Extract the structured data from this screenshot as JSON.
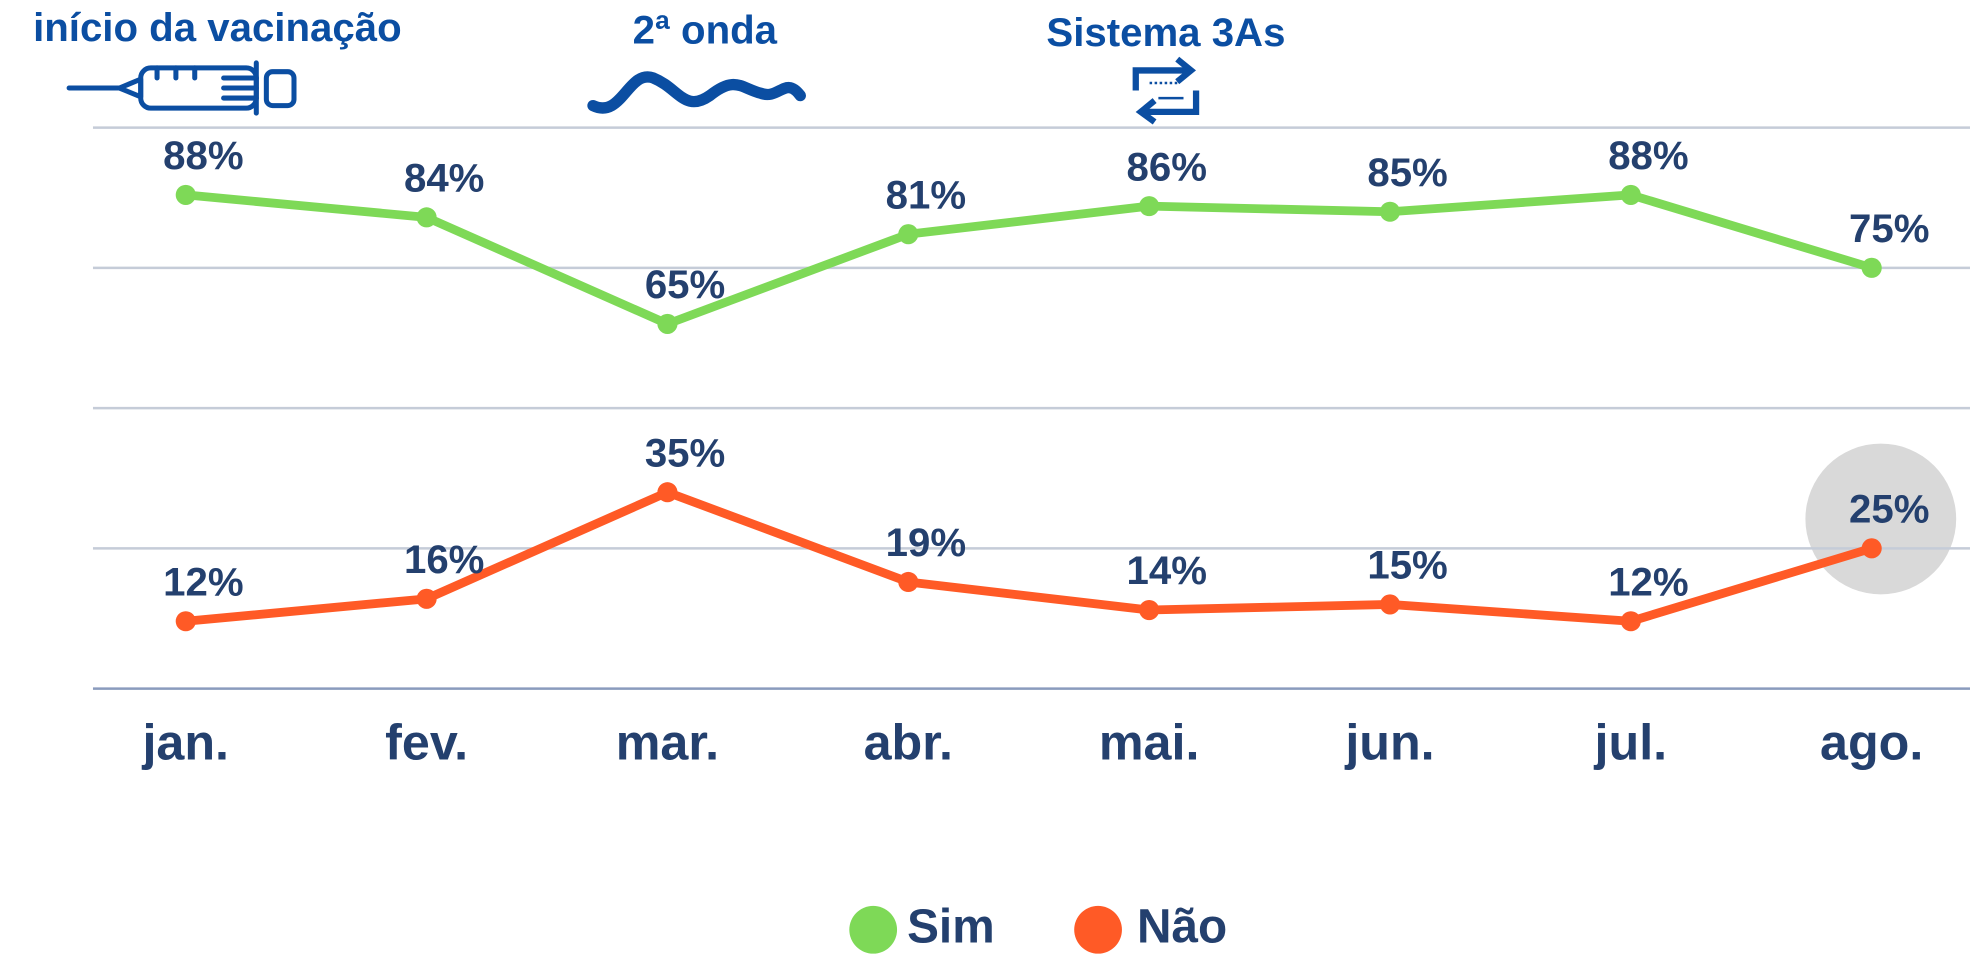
{
  "chart_data": {
    "type": "line",
    "annotations": [
      "início da vacinação",
      "2ª onda",
      "Sistema 3As"
    ],
    "categories": [
      "jan.",
      "fev.",
      "mar.",
      "abr.",
      "mai.",
      "jun.",
      "jul.",
      "ago."
    ],
    "series": [
      {
        "name": "Sim",
        "color": "#7ed957",
        "values": [
          88,
          84,
          65,
          81,
          86,
          85,
          88,
          75
        ],
        "value_labels": [
          "88%",
          "84%",
          "65%",
          "81%",
          "86%",
          "85%",
          "88%",
          "75%"
        ]
      },
      {
        "name": "Não",
        "color": "#ff5a26",
        "values": [
          12,
          16,
          35,
          19,
          14,
          15,
          12,
          25
        ],
        "value_labels": [
          "12%",
          "16%",
          "35%",
          "19%",
          "14%",
          "15%",
          "12%",
          "25%"
        ]
      }
    ],
    "ylim": [
      0,
      100
    ],
    "yticks": [
      0,
      25,
      50,
      75,
      100
    ],
    "grid": true
  }
}
